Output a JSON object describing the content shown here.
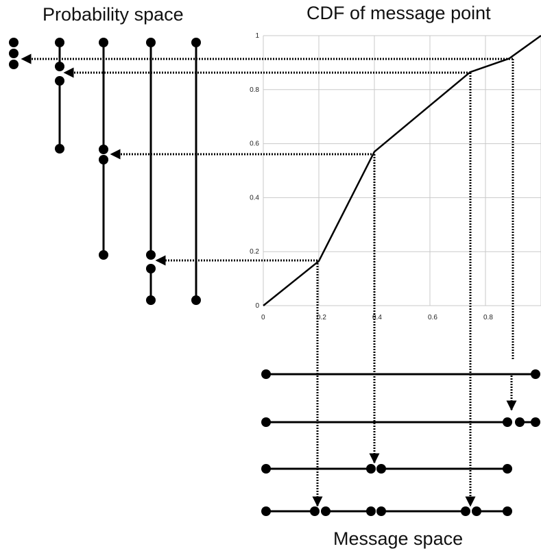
{
  "titles": {
    "probability_space": "Probability space",
    "cdf": "CDF of message point",
    "message_space": "Message space"
  },
  "cdf_chart": {
    "x_ticks": [
      "0",
      "0.2",
      "0.4",
      "0.6",
      "0.8"
    ],
    "y_ticks": [
      "0",
      "0.2",
      "0.4",
      "0.6",
      "0.8",
      "1"
    ],
    "xlim": [
      0,
      1
    ],
    "ylim": [
      0,
      1
    ],
    "grid": true,
    "curve": [
      [
        0,
        0
      ],
      [
        0.2,
        0.165
      ],
      [
        0.4,
        0.57
      ],
      [
        0.745,
        0.865
      ],
      [
        0.885,
        0.915
      ],
      [
        1,
        1
      ]
    ]
  },
  "colors": {
    "line": "#000000",
    "grid": "#c9c9c9"
  }
}
